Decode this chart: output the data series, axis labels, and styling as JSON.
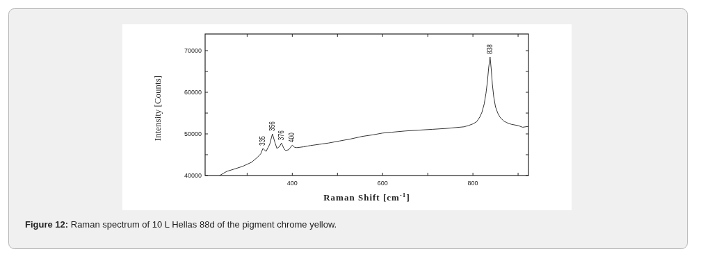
{
  "chart_data": {
    "type": "line",
    "xlabel": "Raman Shift [cm$^{-1}$]",
    "ylabel": "Intensity [Counts]",
    "xlim": [
      207,
      923
    ],
    "ylim": [
      40000,
      74000
    ],
    "xticks": [
      {
        "value": 300,
        "label": null
      },
      400,
      {
        "value": 500,
        "label": null
      },
      600,
      {
        "value": 700,
        "label": null
      },
      800,
      {
        "value": 900,
        "label": null
      }
    ],
    "yticks": [
      40000,
      {
        "value": 45000,
        "label": null
      },
      50000,
      {
        "value": 55000,
        "label": null
      },
      60000,
      {
        "value": 65000,
        "label": null
      },
      70000
    ],
    "grid": false,
    "series": [
      {
        "color": "#333333",
        "x": [
          239,
          255,
          270,
          290,
          310,
          322,
          330,
          335,
          342,
          350,
          356,
          362,
          366,
          372,
          376,
          381,
          385,
          392,
          400,
          405,
          410,
          425,
          440,
          460,
          480,
          505,
          530,
          555,
          580,
          600,
          620,
          650,
          680,
          710,
          740,
          760,
          780,
          790,
          800,
          808,
          815,
          820,
          825,
          829,
          832,
          835,
          838,
          841,
          843,
          846,
          850,
          855,
          860,
          868,
          875,
          885,
          900,
          910,
          923
        ],
        "values": [
          40000,
          41000,
          41500,
          42200,
          43200,
          44300,
          45200,
          46500,
          45800,
          47500,
          50000,
          47800,
          46500,
          47000,
          47800,
          46600,
          46000,
          46200,
          47300,
          46800,
          46700,
          46900,
          47200,
          47500,
          47800,
          48300,
          48800,
          49400,
          49800,
          50200,
          50400,
          50700,
          50900,
          51100,
          51300,
          51500,
          51700,
          52000,
          52400,
          52900,
          54000,
          55200,
          57200,
          59800,
          62500,
          66000,
          68500,
          65000,
          62000,
          59000,
          56500,
          55000,
          54000,
          53100,
          52700,
          52300,
          52000,
          51600,
          51800
        ]
      }
    ],
    "annotations": [
      {
        "text": "335",
        "x": 335,
        "y": 46500
      },
      {
        "text": "356",
        "x": 356,
        "y": 50000
      },
      {
        "text": "376",
        "x": 376,
        "y": 47800
      },
      {
        "text": "400",
        "x": 400,
        "y": 47300
      },
      {
        "text": "838",
        "x": 838,
        "y": 68500
      },
      "Figure 12: Raman spectrum of 10 L Hellas 88d of the pigment chrome yellow."
    ]
  }
}
